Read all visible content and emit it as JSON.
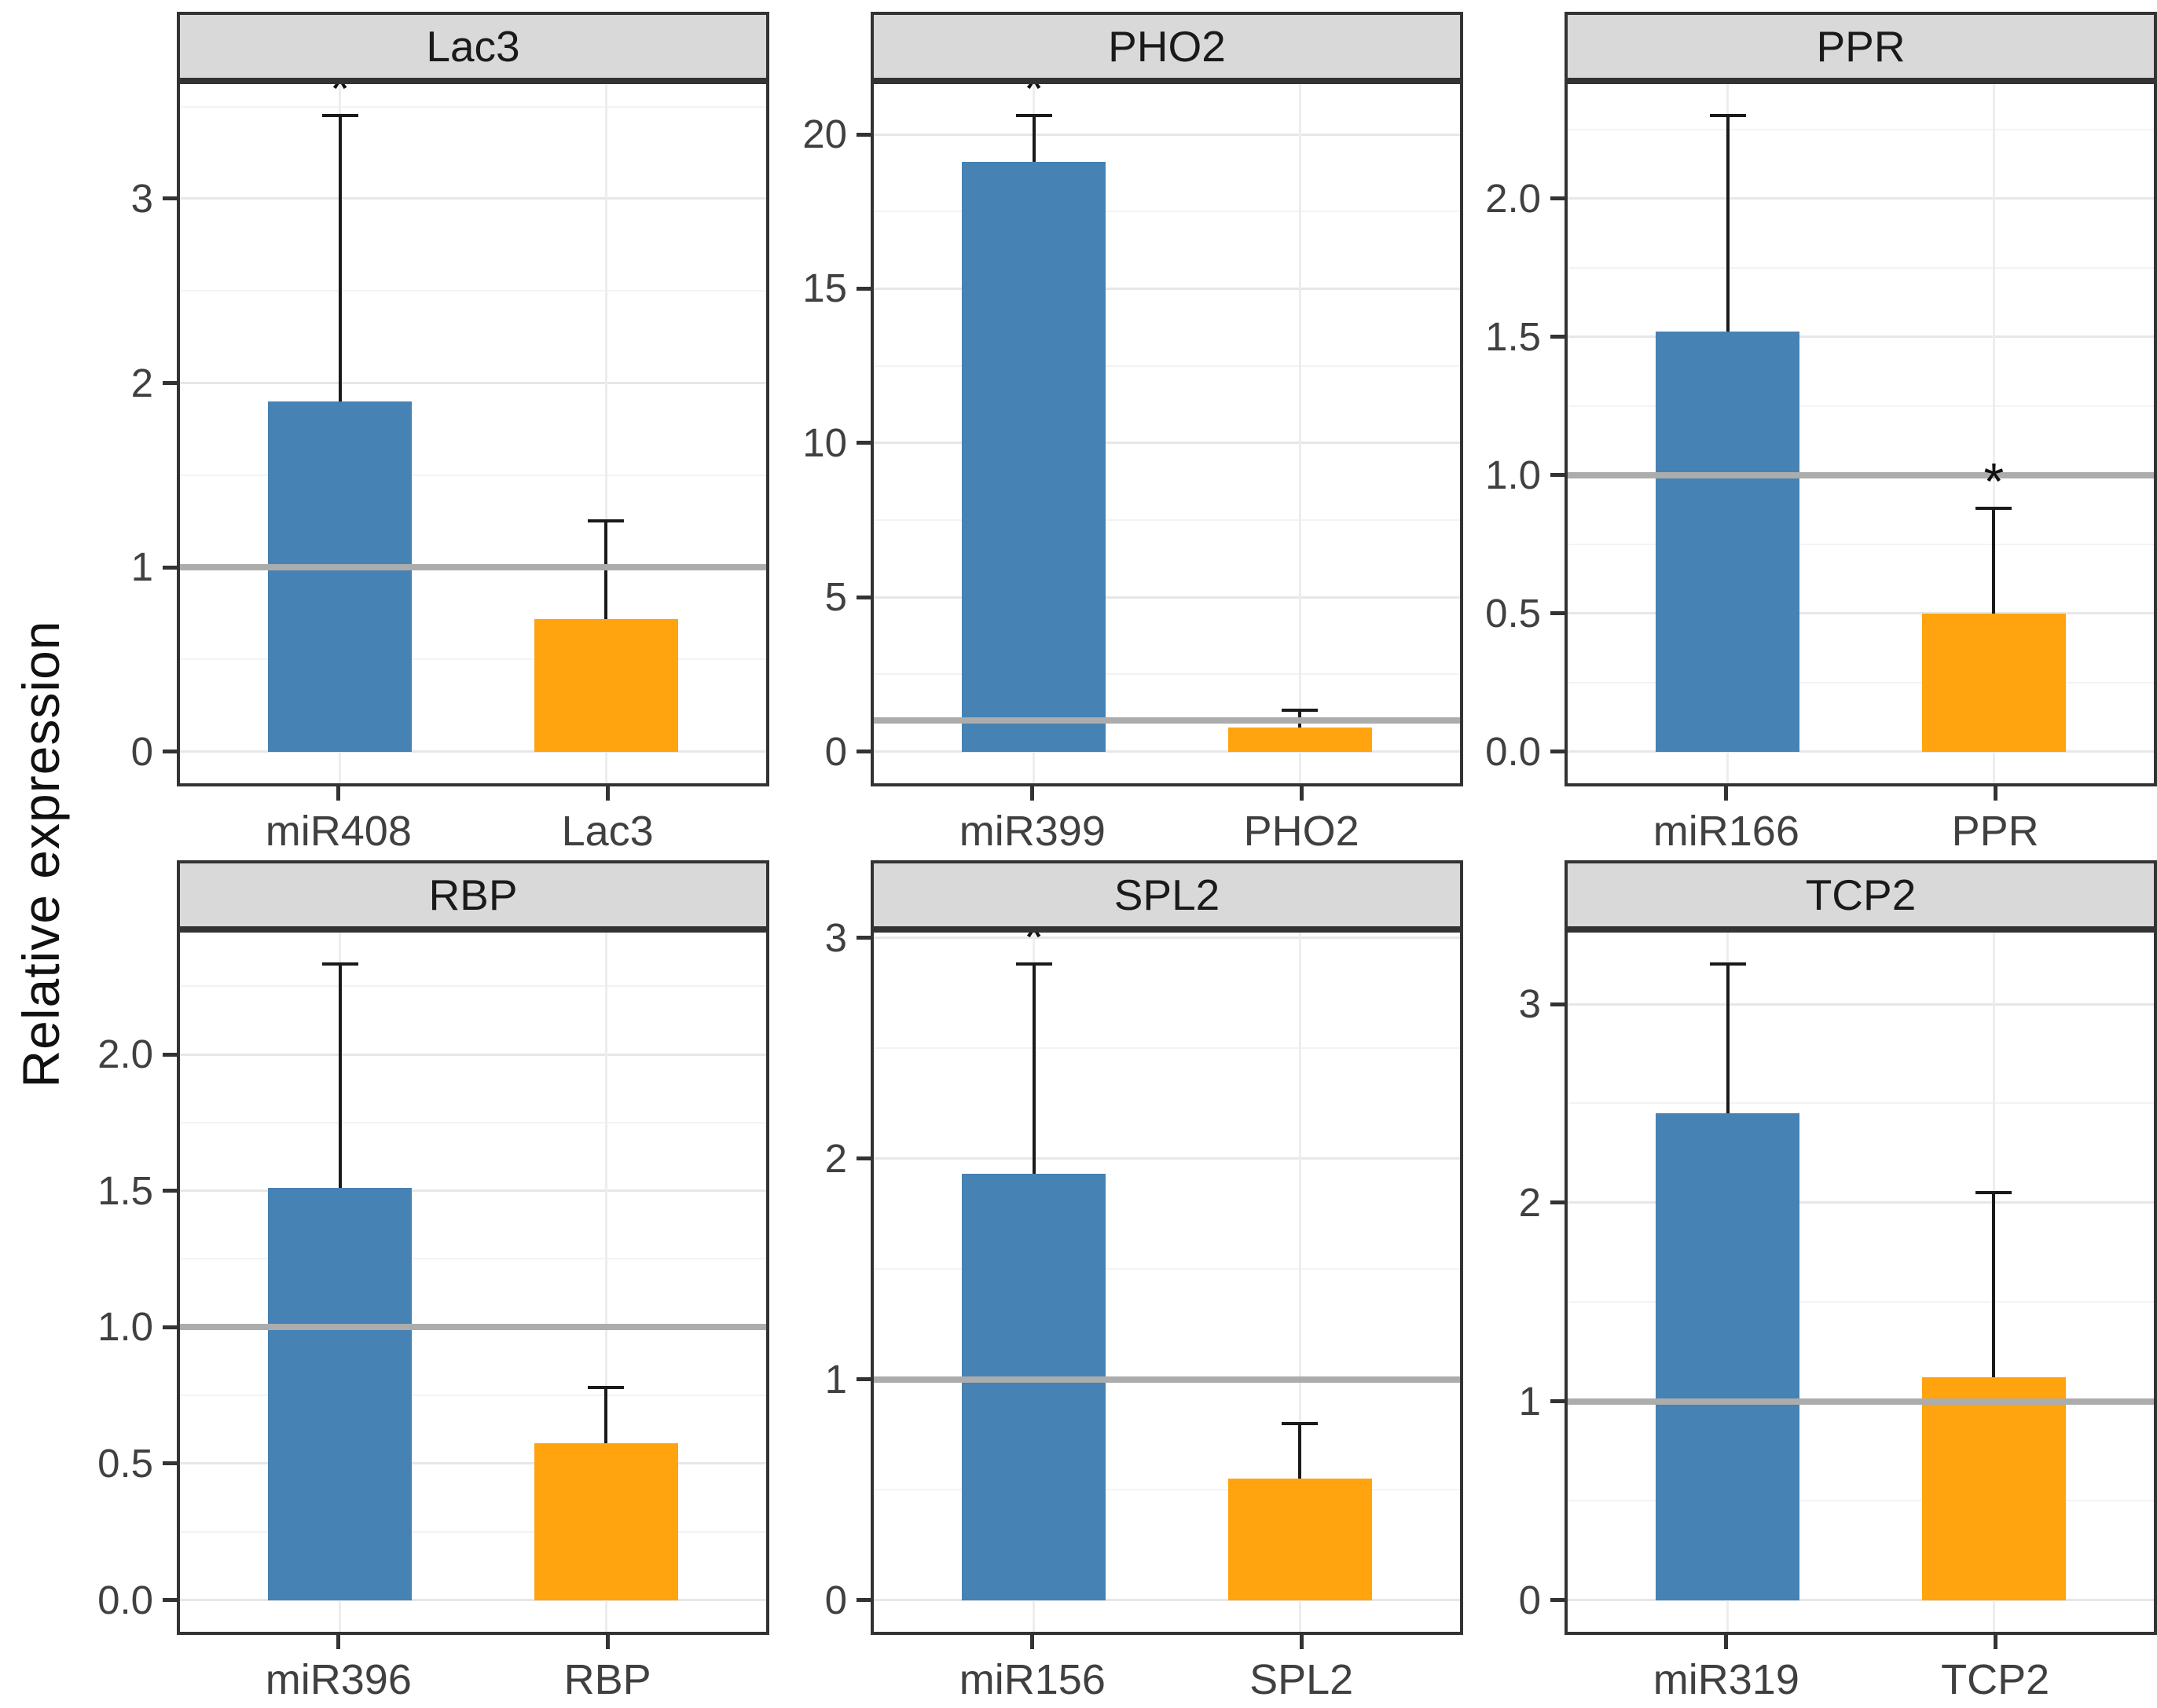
{
  "figure": {
    "ylabel": "Relative expression",
    "significance_symbol": "*",
    "colors": {
      "mirna_bar": "#4682B4",
      "target_bar": "#FFA40E",
      "reference_line": "#ACACAC",
      "strip_background": "#D9D9D9",
      "panel_border": "#333333",
      "grid_major": "#E7E7E7",
      "grid_minor": "#F3F3F3",
      "error_bar": "#1A1A1A",
      "tick_text": "#404040"
    }
  },
  "chart_data": {
    "type": "bar",
    "title": "",
    "ylabel": "Relative expression",
    "layout": {
      "facet_grid": "2 rows x 3 columns",
      "grid": "on",
      "legend": "none",
      "reference_line_y": 1
    },
    "series_meaning": [
      "miRNA (blue)",
      "target gene (orange)"
    ],
    "facets": [
      {
        "title": "Lac3",
        "categories": [
          "miR408",
          "Lac3"
        ],
        "values": [
          1.9,
          0.72
        ],
        "error_upper": [
          3.45,
          1.25
        ],
        "significant": [
          true,
          false
        ],
        "yticks": [
          0,
          1,
          2,
          3
        ],
        "ytick_labels": [
          "0",
          "1",
          "2",
          "3"
        ],
        "minor_ticks": [
          0.5,
          1.5,
          2.5,
          3.5
        ],
        "ylim": [
          -0.1725,
          3.6225
        ],
        "reference_line": 1
      },
      {
        "title": "PHO2",
        "categories": [
          "miR399",
          "PHO2"
        ],
        "values": [
          19.1,
          0.78
        ],
        "error_upper": [
          20.6,
          1.35
        ],
        "significant": [
          true,
          false
        ],
        "yticks": [
          0,
          5,
          10,
          15,
          20
        ],
        "ytick_labels": [
          "0",
          "5",
          "10",
          "15",
          "20"
        ],
        "minor_ticks": [
          2.5,
          7.5,
          12.5,
          17.5
        ],
        "ylim": [
          -1.03,
          21.63
        ],
        "reference_line": 1
      },
      {
        "title": "PPR",
        "categories": [
          "miR166",
          "PPR"
        ],
        "values": [
          1.52,
          0.5
        ],
        "error_upper": [
          2.3,
          0.88
        ],
        "significant": [
          false,
          true
        ],
        "yticks": [
          0,
          0.5,
          1,
          1.5,
          2
        ],
        "ytick_labels": [
          "0.0",
          "0.5",
          "1.0",
          "1.5",
          "2.0"
        ],
        "minor_ticks": [
          0.25,
          0.75,
          1.25,
          1.75,
          2.25
        ],
        "ylim": [
          -0.115,
          2.415
        ],
        "reference_line": 1
      },
      {
        "title": "RBP",
        "categories": [
          "miR396",
          "RBP"
        ],
        "values": [
          1.51,
          0.575
        ],
        "error_upper": [
          2.33,
          0.78
        ],
        "significant": [
          false,
          false
        ],
        "yticks": [
          0,
          0.5,
          1,
          1.5,
          2
        ],
        "ytick_labels": [
          "0.0",
          "0.5",
          "1.0",
          "1.5",
          "2.0"
        ],
        "minor_ticks": [
          0.25,
          0.75,
          1.25,
          1.75,
          2.25
        ],
        "ylim": [
          -0.1165,
          2.4465
        ],
        "reference_line": 1
      },
      {
        "title": "SPL2",
        "categories": [
          "miR156",
          "SPL2"
        ],
        "values": [
          1.93,
          0.55
        ],
        "error_upper": [
          2.88,
          0.8
        ],
        "significant": [
          true,
          false
        ],
        "yticks": [
          0,
          1,
          2,
          3
        ],
        "ytick_labels": [
          "0",
          "1",
          "2",
          "3"
        ],
        "minor_ticks": [
          0.5,
          1.5,
          2.5
        ],
        "ylim": [
          -0.144,
          3.024
        ],
        "reference_line": 1
      },
      {
        "title": "TCP2",
        "categories": [
          "miR319",
          "TCP2"
        ],
        "values": [
          2.45,
          1.12
        ],
        "error_upper": [
          3.2,
          2.05
        ],
        "significant": [
          false,
          false
        ],
        "yticks": [
          0,
          1,
          2,
          3
        ],
        "ytick_labels": [
          "0",
          "1",
          "2",
          "3"
        ],
        "minor_ticks": [
          0.5,
          1.5,
          2.5
        ],
        "ylim": [
          -0.16,
          3.36
        ],
        "reference_line": 1
      }
    ]
  }
}
